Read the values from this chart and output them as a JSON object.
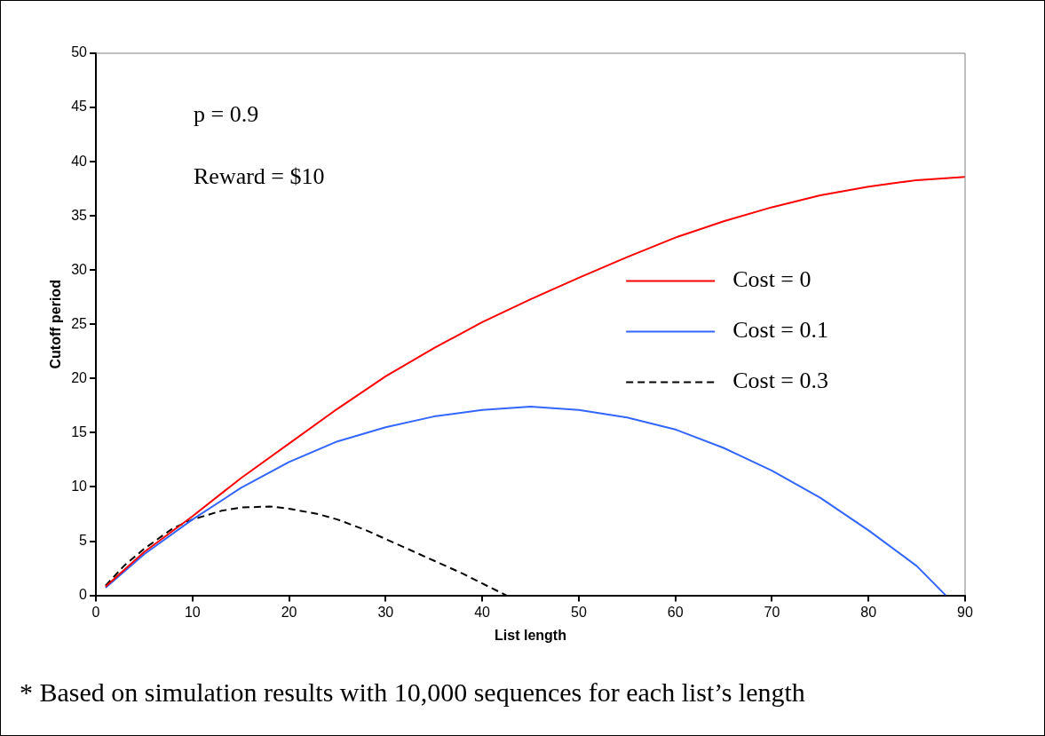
{
  "chart_data": {
    "type": "line",
    "xlabel": "List length",
    "ylabel": "Cutoff period",
    "xlim": [
      0,
      90
    ],
    "xticks": [
      0,
      10,
      20,
      30,
      40,
      50,
      60,
      70,
      80,
      90
    ],
    "ylim": [
      0,
      50
    ],
    "yticks": [
      0,
      5,
      10,
      15,
      20,
      25,
      30,
      35,
      40,
      45,
      50
    ],
    "grid": false,
    "legend": "right",
    "marker": "none",
    "annotations": [
      "p = 0.9",
      "Reward = $10",
      "* Based on simulation results with 10,000 sequences for each list’s length"
    ],
    "series": [
      {
        "name": "Cost = 0",
        "color": "#ff0000",
        "line_style": "solid",
        "x": [
          1,
          5,
          10,
          15,
          20,
          25,
          30,
          35,
          40,
          45,
          50,
          55,
          60,
          65,
          70,
          75,
          80,
          85,
          90
        ],
        "values": [
          0.8,
          4,
          7.3,
          10.8,
          14,
          17.2,
          20.2,
          22.8,
          25.2,
          27.3,
          29.3,
          31.2,
          33,
          34.5,
          35.8,
          36.9,
          37.7,
          38.3,
          38.6
        ]
      },
      {
        "name": "Cost = 0.1",
        "color": "#3366ff",
        "line_style": "solid",
        "x": [
          1,
          5,
          10,
          15,
          20,
          25,
          30,
          35,
          40,
          45,
          50,
          55,
          60,
          65,
          70,
          75,
          80,
          85,
          88
        ],
        "values": [
          0.7,
          3.8,
          7,
          9.9,
          12.3,
          14.2,
          15.5,
          16.5,
          17.1,
          17.4,
          17.1,
          16.4,
          15.3,
          13.6,
          11.5,
          9,
          6,
          2.7,
          0
        ]
      },
      {
        "name": "Cost = 0.3",
        "color": "#000000",
        "line_style": "dashed",
        "x": [
          1,
          3,
          5,
          8,
          10,
          13,
          15,
          18,
          20,
          23,
          25,
          28,
          30,
          33,
          35,
          38,
          40,
          42.5
        ],
        "values": [
          0.9,
          2.8,
          4.3,
          6.2,
          7,
          7.8,
          8.1,
          8.2,
          8,
          7.5,
          7,
          6,
          5.2,
          4,
          3.2,
          2,
          1.1,
          0
        ]
      }
    ]
  }
}
